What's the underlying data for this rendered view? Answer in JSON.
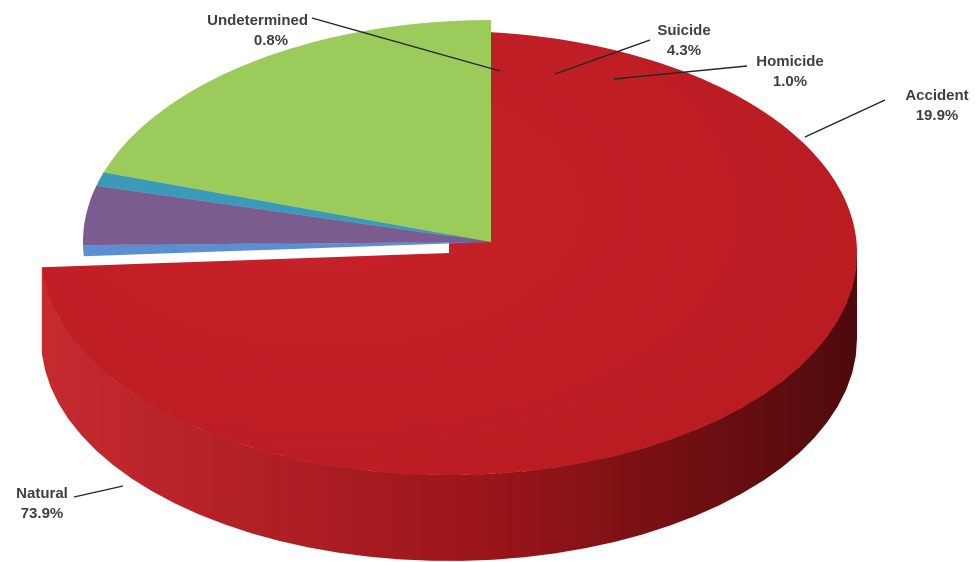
{
  "chart_data": {
    "type": "pie",
    "title": "",
    "categories": [
      "Natural",
      "Undetermined",
      "Suicide",
      "Homicide",
      "Accident"
    ],
    "values": [
      73.9,
      0.8,
      4.3,
      1.0,
      19.9
    ],
    "labels": [
      "73.9%",
      "0.8%",
      "4.3%",
      "1.0%",
      "19.9%"
    ],
    "exploded": [
      "Natural",
      "Accident"
    ],
    "three_d": true,
    "legend": "none"
  },
  "colors": {
    "Natural": "#c41e24",
    "Undetermined": "#5b8fd4",
    "Suicide": "#7a5c8f",
    "Homicide": "#3a9ab8",
    "Accident": "#9bcb5a"
  },
  "side_colors": {
    "Natural": "#8e1418",
    "Accident": "#3f5a22",
    "Suicide": "#4e3a5e",
    "Homicide": "#24657a",
    "Undetermined": "#3a5f8f"
  }
}
